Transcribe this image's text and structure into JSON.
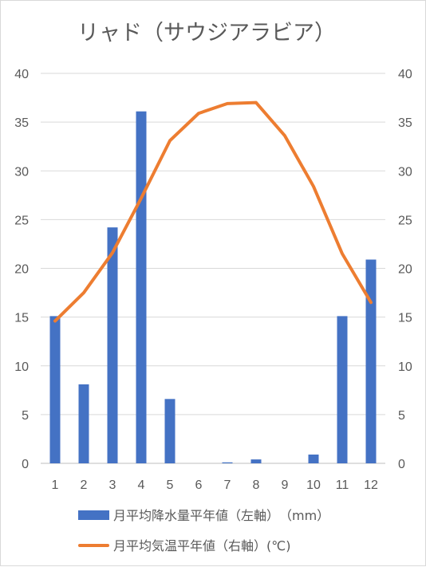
{
  "chart_data": {
    "type": "bar",
    "title": "リャド（サウジアラビア）",
    "categories": [
      "1",
      "2",
      "3",
      "4",
      "5",
      "6",
      "7",
      "8",
      "9",
      "10",
      "11",
      "12"
    ],
    "series": [
      {
        "name": "月平均降水量平年値（左軸）（mm）",
        "type": "bar",
        "axis": "left",
        "color": "#4472c4",
        "values": [
          15.1,
          8.1,
          24.2,
          36.1,
          6.6,
          0.0,
          0.1,
          0.4,
          0.0,
          0.9,
          15.1,
          20.9
        ]
      },
      {
        "name": "月平均気温平年値（右軸）(℃)",
        "type": "line",
        "axis": "right",
        "color": "#ed7d31",
        "values": [
          14.6,
          17.5,
          21.6,
          27.2,
          33.1,
          35.9,
          36.9,
          37.0,
          33.6,
          28.4,
          21.5,
          16.5
        ]
      }
    ],
    "y_left": {
      "min": 0,
      "max": 40,
      "step": 5,
      "ticks": [
        "0",
        "5",
        "10",
        "15",
        "20",
        "25",
        "30",
        "35",
        "40"
      ]
    },
    "y_right": {
      "min": 0,
      "max": 40,
      "step": 5,
      "ticks": [
        "0",
        "5",
        "10",
        "15",
        "20",
        "25",
        "30",
        "35",
        "40"
      ]
    },
    "legend": {
      "position": "bottom",
      "items": [
        "月平均降水量平年値（左軸）　（mm）",
        "月平均気温平年値（右軸）(℃)"
      ]
    },
    "grid": true
  }
}
